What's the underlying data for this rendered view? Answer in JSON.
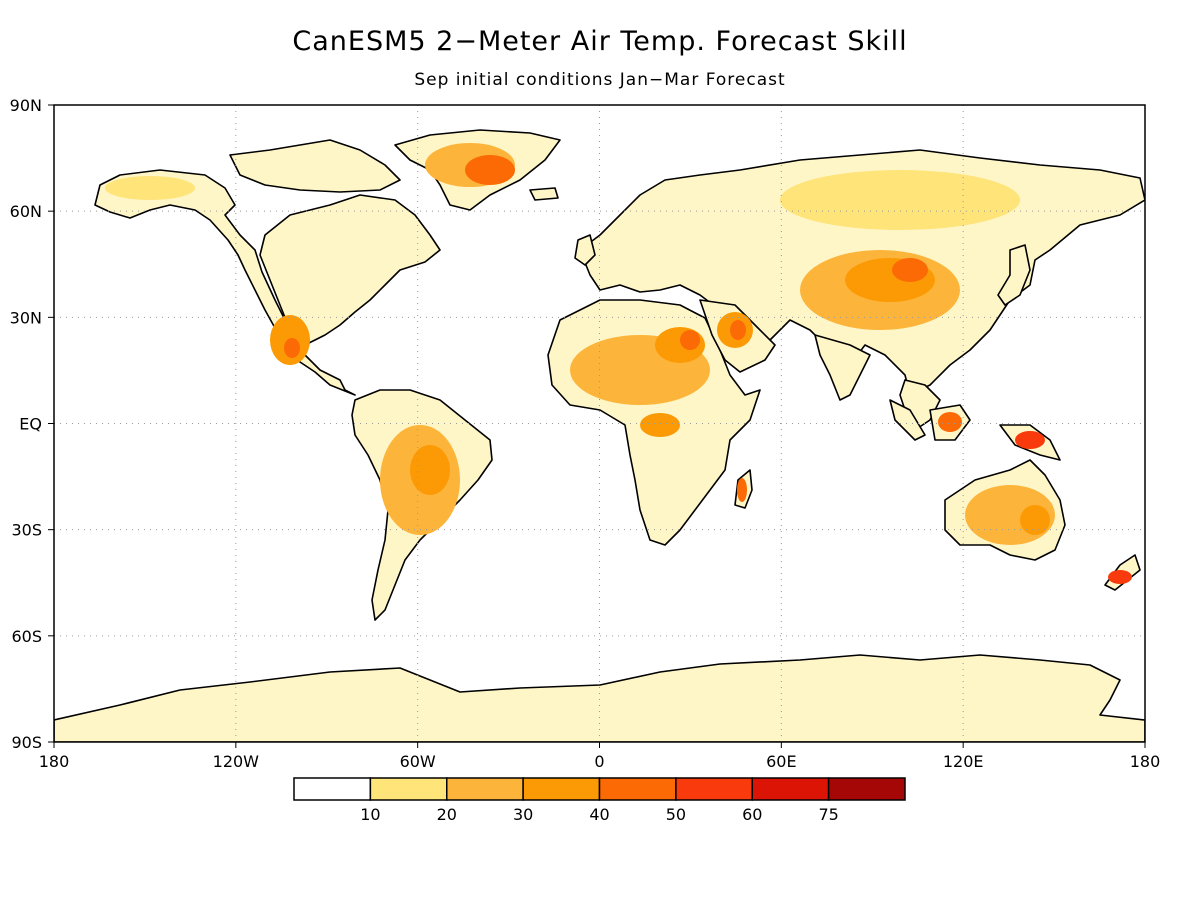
{
  "title": "CanESM5 2−Meter Air Temp. Forecast Skill",
  "subtitle": "Sep initial conditions  Jan−Mar Forecast",
  "map": {
    "lon_range": [
      -180,
      180
    ],
    "lat_range": [
      -90,
      90
    ],
    "grid": "dotted",
    "lat_ticks": [
      {
        "lat": 90,
        "label": "90N"
      },
      {
        "lat": 60,
        "label": "60N"
      },
      {
        "lat": 30,
        "label": "30N"
      },
      {
        "lat": 0,
        "label": "EQ"
      },
      {
        "lat": -30,
        "label": "30S"
      },
      {
        "lat": -60,
        "label": "60S"
      },
      {
        "lat": -90,
        "label": "90S"
      }
    ],
    "lon_ticks": [
      {
        "lon": -180,
        "label": "180"
      },
      {
        "lon": -120,
        "label": "120W"
      },
      {
        "lon": -60,
        "label": "60W"
      },
      {
        "lon": 0,
        "label": "0"
      },
      {
        "lon": 60,
        "label": "60E"
      },
      {
        "lon": 120,
        "label": "120E"
      },
      {
        "lon": 180,
        "label": "180"
      }
    ]
  },
  "colorbar": {
    "colors": [
      "#ffffff",
      "#ffe47a",
      "#fcb53a",
      "#fc9a05",
      "#fc6a05",
      "#f93a0c",
      "#dc1405",
      "#a50606"
    ],
    "labels": [
      "10",
      "20",
      "30",
      "40",
      "50",
      "60",
      "75"
    ]
  },
  "chart_data": {
    "type": "heatmap",
    "variable": "2-meter air temperature forecast skill",
    "lon_range": [
      -180,
      180
    ],
    "lat_range": [
      -90,
      90
    ],
    "levels": [
      10,
      20,
      30,
      40,
      50,
      60,
      75
    ],
    "regions": [
      {
        "name": "Greenland",
        "lon": -40,
        "lat": 72,
        "value": 45
      },
      {
        "name": "Alaska",
        "lon": -150,
        "lat": 65,
        "value": 20
      },
      {
        "name": "Mexico",
        "lon": -102,
        "lat": 22,
        "value": 40
      },
      {
        "name": "Amazon",
        "lon": -55,
        "lat": -10,
        "value": 30
      },
      {
        "name": "Sahara",
        "lon": 15,
        "lat": 20,
        "value": 30
      },
      {
        "name": "Egypt",
        "lon": 30,
        "lat": 26,
        "value": 45
      },
      {
        "name": "Arabia",
        "lon": 45,
        "lat": 22,
        "value": 45
      },
      {
        "name": "Central Africa",
        "lon": 25,
        "lat": -2,
        "value": 40
      },
      {
        "name": "Tibet / China",
        "lon": 100,
        "lat": 38,
        "value": 40
      },
      {
        "name": "Siberia",
        "lon": 100,
        "lat": 65,
        "value": 15
      },
      {
        "name": "Borneo",
        "lon": 114,
        "lat": 0,
        "value": 50
      },
      {
        "name": "New Guinea",
        "lon": 142,
        "lat": -5,
        "value": 60
      },
      {
        "name": "Australia",
        "lon": 135,
        "lat": -25,
        "value": 25
      },
      {
        "name": "New Zealand",
        "lon": 172,
        "lat": -42,
        "value": 50
      }
    ]
  }
}
